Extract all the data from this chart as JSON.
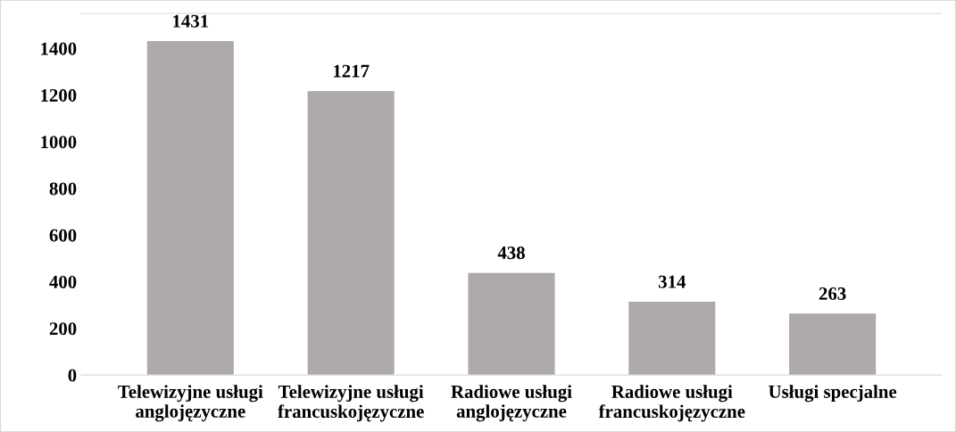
{
  "chart_data": {
    "type": "bar",
    "categories": [
      "Telewizyjne usługi\nanglojęzyczne",
      "Telewizyjne usługi\nfrancuskojęzyczne",
      "Radiowe usługi\nanglojęzyczne",
      "Radiowe usługi\nfrancuskojęzyczne",
      "Usługi specjalne"
    ],
    "values": [
      1431,
      1217,
      438,
      314,
      263
    ],
    "color": "#aeaaaa",
    "ylim": [
      0,
      1550
    ],
    "yticks": [
      0,
      200,
      400,
      600,
      800,
      1000,
      1200,
      1400
    ],
    "data_labels": true,
    "grid": false,
    "legend": false
  }
}
